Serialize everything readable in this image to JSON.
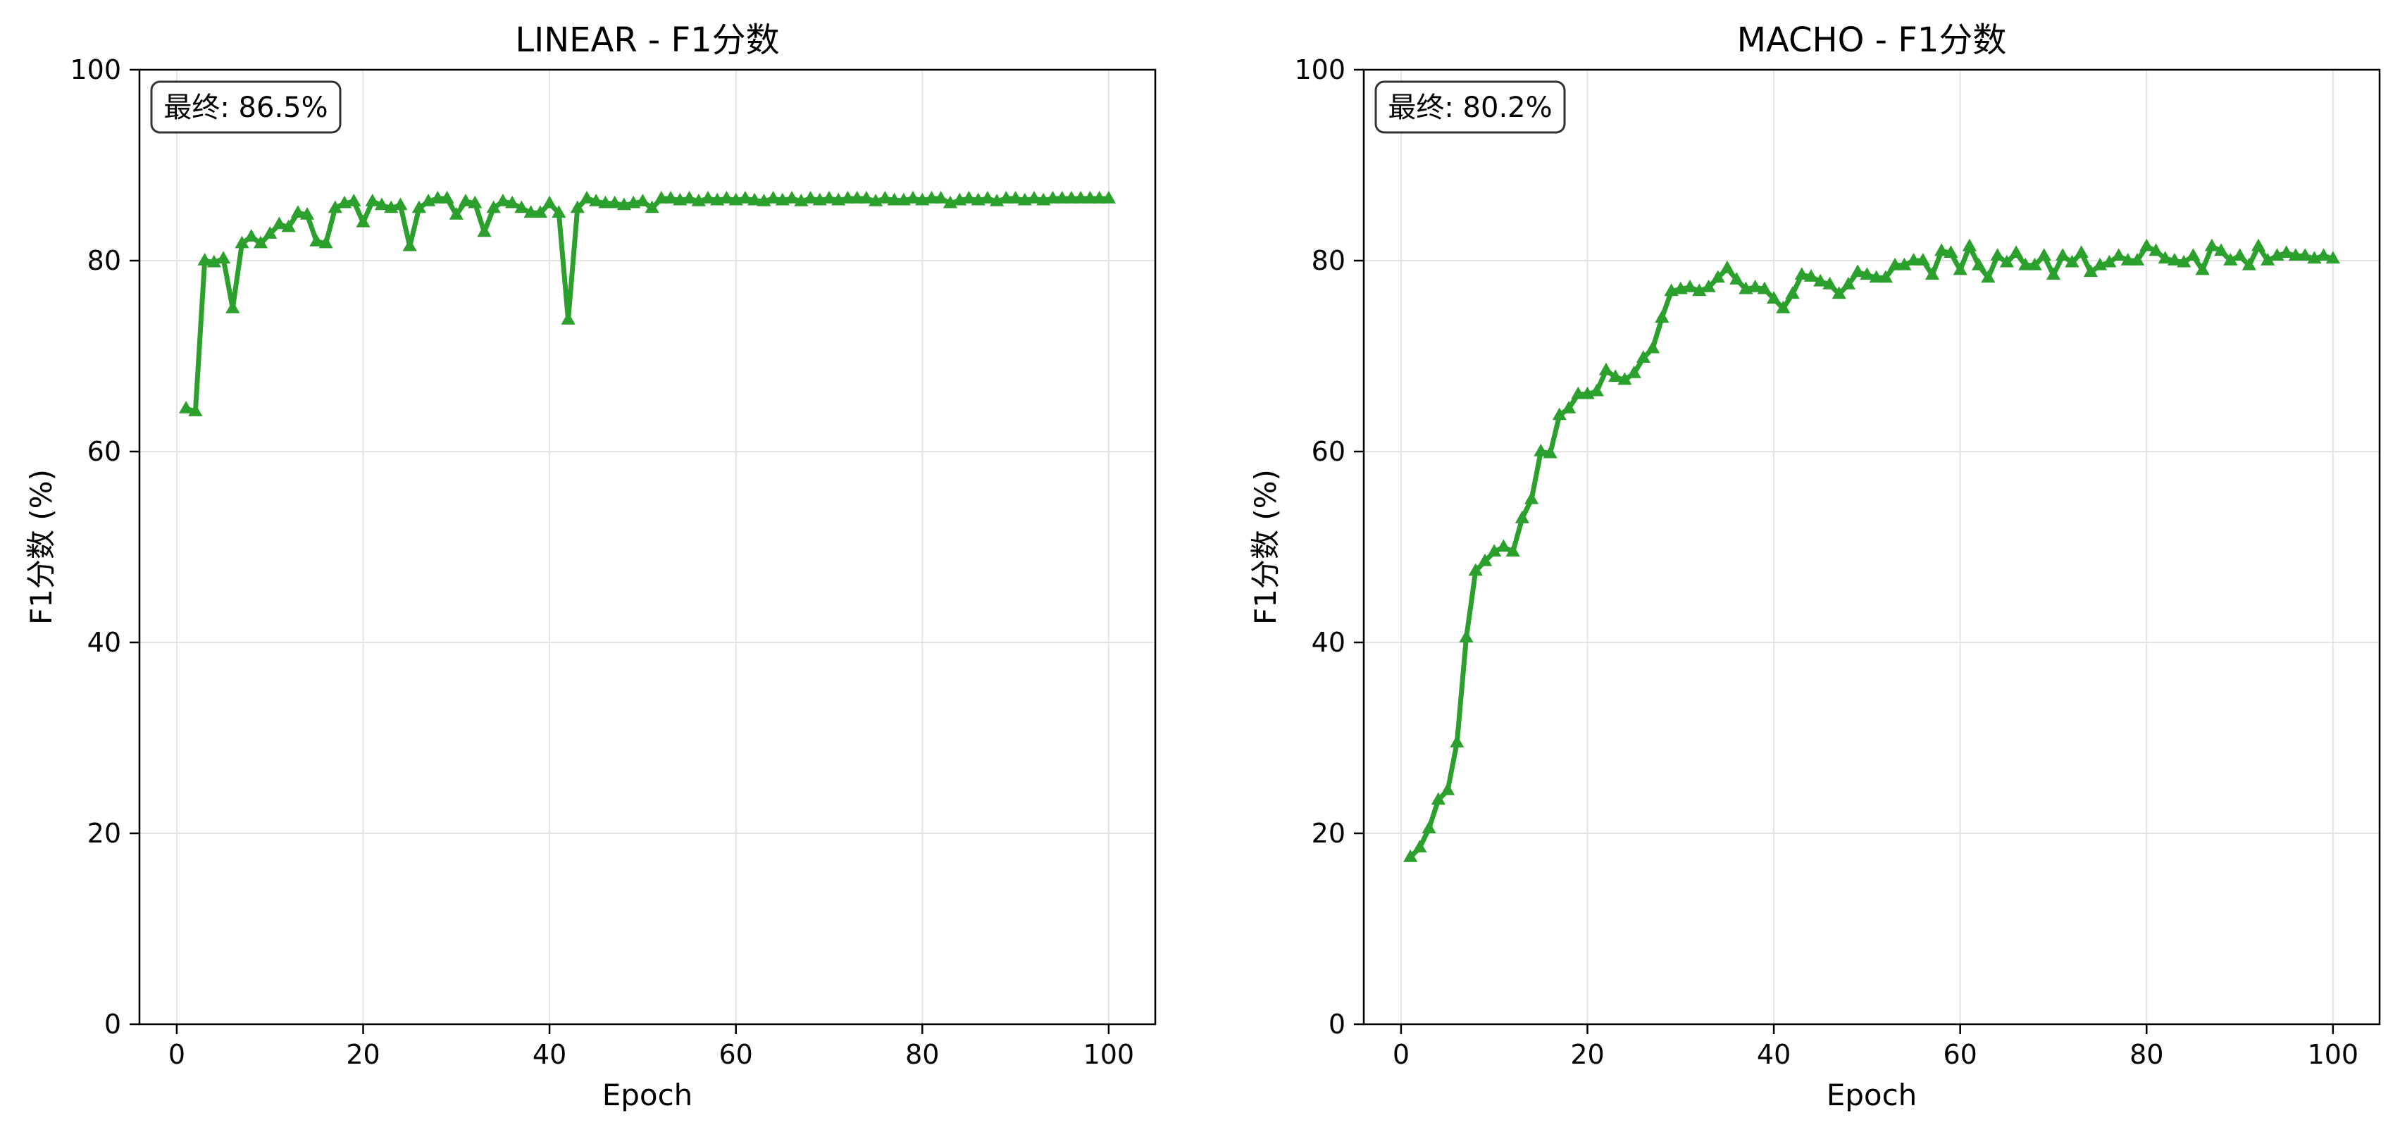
{
  "chart_data": [
    {
      "type": "line",
      "title": "LINEAR - F1分数",
      "xlabel": "Epoch",
      "ylabel": "F1分数 (%)",
      "xlim": [
        -4,
        105
      ],
      "ylim": [
        0,
        100
      ],
      "xticks": [
        0,
        20,
        40,
        60,
        80,
        100
      ],
      "yticks": [
        0,
        20,
        40,
        60,
        80,
        100
      ],
      "grid": true,
      "marker": "triangle",
      "color": "#2ca02c",
      "annotation": "最终: 86.5%",
      "annotation_position": "top-left",
      "series": [
        {
          "x": [
            1,
            2,
            3,
            4,
            5,
            6,
            7,
            8,
            9,
            10,
            11,
            12,
            13,
            14,
            15,
            16,
            17,
            18,
            19,
            20,
            21,
            22,
            23,
            24,
            25,
            26,
            27,
            28,
            29,
            30,
            31,
            32,
            33,
            34,
            35,
            36,
            37,
            38,
            39,
            40,
            41,
            42,
            43,
            44,
            45,
            46,
            47,
            48,
            49,
            50,
            51,
            52,
            53,
            54,
            55,
            56,
            57,
            58,
            59,
            60,
            61,
            62,
            63,
            64,
            65,
            66,
            67,
            68,
            69,
            70,
            71,
            72,
            73,
            74,
            75,
            76,
            77,
            78,
            79,
            80,
            81,
            82,
            83,
            84,
            85,
            86,
            87,
            88,
            89,
            90,
            91,
            92,
            93,
            94,
            95,
            96,
            97,
            98,
            99,
            100
          ],
          "values": [
            64.5,
            64.2,
            80.0,
            79.8,
            80.2,
            75.0,
            81.8,
            82.5,
            81.8,
            82.8,
            83.8,
            83.5,
            85.0,
            84.8,
            82.0,
            81.8,
            85.5,
            86.0,
            86.2,
            84.0,
            86.2,
            85.8,
            85.5,
            85.8,
            81.5,
            85.5,
            86.2,
            86.5,
            86.5,
            84.8,
            86.2,
            86.0,
            83.0,
            85.5,
            86.2,
            86.0,
            85.5,
            85.0,
            85.0,
            86.0,
            85.0,
            73.8,
            85.5,
            86.5,
            86.2,
            86.0,
            86.0,
            85.8,
            86.0,
            86.2,
            85.5,
            86.5,
            86.5,
            86.3,
            86.5,
            86.2,
            86.5,
            86.3,
            86.5,
            86.3,
            86.5,
            86.3,
            86.2,
            86.5,
            86.3,
            86.5,
            86.2,
            86.5,
            86.3,
            86.5,
            86.3,
            86.5,
            86.5,
            86.5,
            86.2,
            86.5,
            86.3,
            86.3,
            86.5,
            86.3,
            86.5,
            86.5,
            86.0,
            86.3,
            86.5,
            86.3,
            86.5,
            86.2,
            86.5,
            86.5,
            86.3,
            86.5,
            86.3,
            86.5,
            86.5,
            86.5,
            86.5,
            86.5,
            86.5,
            86.5
          ]
        }
      ]
    },
    {
      "type": "line",
      "title": "MACHO - F1分数",
      "xlabel": "Epoch",
      "ylabel": "F1分数 (%)",
      "xlim": [
        -4,
        105
      ],
      "ylim": [
        0,
        100
      ],
      "xticks": [
        0,
        20,
        40,
        60,
        80,
        100
      ],
      "yticks": [
        0,
        20,
        40,
        60,
        80,
        100
      ],
      "grid": true,
      "marker": "triangle",
      "color": "#2ca02c",
      "annotation": "最终: 80.2%",
      "annotation_position": "top-left",
      "series": [
        {
          "x": [
            1,
            2,
            3,
            4,
            5,
            6,
            7,
            8,
            9,
            10,
            11,
            12,
            13,
            14,
            15,
            16,
            17,
            18,
            19,
            20,
            21,
            22,
            23,
            24,
            25,
            26,
            27,
            28,
            29,
            30,
            31,
            32,
            33,
            34,
            35,
            36,
            37,
            38,
            39,
            40,
            41,
            42,
            43,
            44,
            45,
            46,
            47,
            48,
            49,
            50,
            51,
            52,
            53,
            54,
            55,
            56,
            57,
            58,
            59,
            60,
            61,
            62,
            63,
            64,
            65,
            66,
            67,
            68,
            69,
            70,
            71,
            72,
            73,
            74,
            75,
            76,
            77,
            78,
            79,
            80,
            81,
            82,
            83,
            84,
            85,
            86,
            87,
            88,
            89,
            90,
            91,
            92,
            93,
            94,
            95,
            96,
            97,
            98,
            99,
            100
          ],
          "values": [
            17.5,
            18.5,
            20.5,
            23.5,
            24.5,
            29.5,
            40.5,
            47.5,
            48.5,
            49.5,
            50.0,
            49.5,
            53.0,
            55.0,
            60.0,
            59.8,
            63.8,
            64.5,
            66.0,
            66.0,
            66.3,
            68.5,
            67.8,
            67.5,
            68.2,
            69.8,
            70.8,
            74.0,
            76.8,
            77.0,
            77.2,
            76.8,
            77.2,
            78.2,
            79.2,
            78.0,
            77.0,
            77.2,
            77.0,
            76.0,
            75.0,
            76.5,
            78.5,
            78.3,
            77.8,
            77.5,
            76.5,
            77.5,
            78.8,
            78.5,
            78.2,
            78.2,
            79.5,
            79.5,
            80.0,
            80.0,
            78.5,
            81.0,
            80.8,
            79.0,
            81.5,
            79.5,
            78.2,
            80.5,
            79.8,
            80.8,
            79.5,
            79.5,
            80.5,
            78.5,
            80.5,
            79.8,
            80.8,
            78.8,
            79.5,
            79.8,
            80.5,
            80.0,
            80.0,
            81.5,
            81.0,
            80.2,
            80.0,
            79.8,
            80.5,
            79.0,
            81.5,
            81.0,
            80.0,
            80.5,
            79.5,
            81.5,
            80.0,
            80.5,
            80.8,
            80.5,
            80.5,
            80.2,
            80.5,
            80.2
          ]
        }
      ]
    }
  ]
}
